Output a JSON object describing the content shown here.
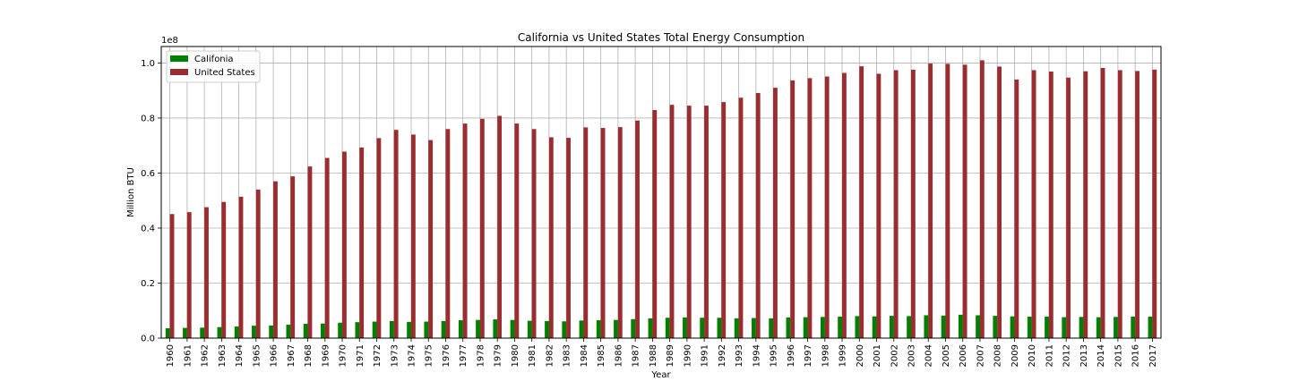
{
  "chart_data": {
    "type": "bar",
    "title": "California vs United States Total Energy Consumption",
    "xlabel": "Year",
    "ylabel": "Million BTU",
    "offset_label": "1e8",
    "ylim": [
      0,
      1.06
    ],
    "yticks": [
      "0.0",
      "0.2",
      "0.4",
      "0.6",
      "0.8",
      "1.0"
    ],
    "grid": true,
    "legend_position": "top-left",
    "categories": [
      "1960",
      "1961",
      "1962",
      "1963",
      "1964",
      "1965",
      "1966",
      "1967",
      "1968",
      "1969",
      "1970",
      "1971",
      "1972",
      "1973",
      "1974",
      "1975",
      "1976",
      "1977",
      "1978",
      "1979",
      "1980",
      "1981",
      "1982",
      "1983",
      "1984",
      "1985",
      "1986",
      "1987",
      "1988",
      "1989",
      "1990",
      "1991",
      "1992",
      "1993",
      "1994",
      "1995",
      "1996",
      "1997",
      "1998",
      "1999",
      "2000",
      "2001",
      "2002",
      "2003",
      "2004",
      "2005",
      "2006",
      "2007",
      "2008",
      "2009",
      "2010",
      "2011",
      "2012",
      "2013",
      "2014",
      "2015",
      "2016",
      "2017"
    ],
    "series": [
      {
        "name": "Califonia",
        "color": "#008000",
        "values": [
          0.036,
          0.037,
          0.038,
          0.04,
          0.042,
          0.045,
          0.046,
          0.049,
          0.052,
          0.053,
          0.056,
          0.058,
          0.06,
          0.062,
          0.059,
          0.06,
          0.062,
          0.065,
          0.066,
          0.068,
          0.066,
          0.063,
          0.062,
          0.061,
          0.064,
          0.065,
          0.066,
          0.069,
          0.072,
          0.074,
          0.075,
          0.074,
          0.074,
          0.072,
          0.073,
          0.072,
          0.075,
          0.076,
          0.077,
          0.078,
          0.08,
          0.079,
          0.081,
          0.08,
          0.083,
          0.082,
          0.085,
          0.083,
          0.081,
          0.079,
          0.078,
          0.078,
          0.076,
          0.077,
          0.076,
          0.077,
          0.078,
          0.078
        ]
      },
      {
        "name": "United States",
        "color": "#9b2d30",
        "values": [
          0.451,
          0.458,
          0.476,
          0.495,
          0.514,
          0.54,
          0.57,
          0.588,
          0.624,
          0.655,
          0.678,
          0.693,
          0.727,
          0.757,
          0.74,
          0.72,
          0.76,
          0.78,
          0.797,
          0.808,
          0.78,
          0.76,
          0.73,
          0.728,
          0.766,
          0.764,
          0.767,
          0.791,
          0.829,
          0.848,
          0.845,
          0.845,
          0.858,
          0.874,
          0.891,
          0.91,
          0.937,
          0.945,
          0.951,
          0.964,
          0.988,
          0.961,
          0.974,
          0.976,
          0.998,
          0.997,
          0.994,
          1.01,
          0.987,
          0.94,
          0.974,
          0.969,
          0.947,
          0.97,
          0.982,
          0.974,
          0.971,
          0.976
        ]
      }
    ]
  }
}
